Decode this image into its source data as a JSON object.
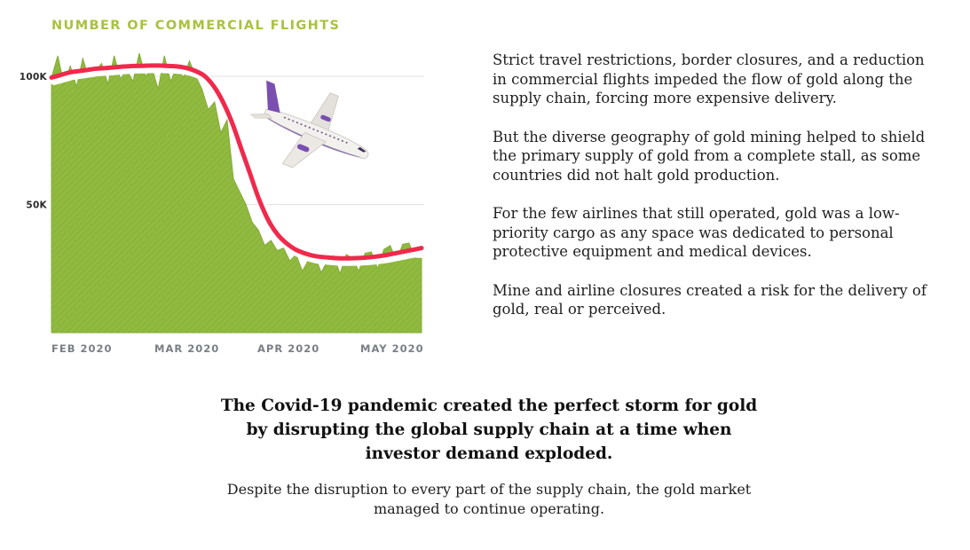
{
  "chart_data": {
    "type": "area",
    "title": "NUMBER OF COMMERCIAL FLIGHTS",
    "xlabel": "",
    "ylabel": "",
    "x_tick_labels": [
      "FEB 2020",
      "MAR 2020",
      "APR 2020",
      "MAY 2020"
    ],
    "y_tick_labels": [
      "100K",
      "50K"
    ],
    "y_ticks": [
      100000,
      50000
    ],
    "ylim": [
      0,
      105000
    ],
    "grid": true,
    "series": [
      {
        "values": [
          99500,
          108000,
          97000,
          104000,
          96000,
          107000,
          99000,
          102000,
          105000,
          97000,
          108000,
          99000,
          102500,
          98000,
          109000,
          100000,
          103500,
          95000,
          108000,
          98000,
          104000,
          99500,
          106000,
          100000,
          95000,
          87000,
          90000,
          78000,
          83000,
          60000,
          55000,
          50000,
          43000,
          40000,
          34000,
          36000,
          32000,
          33000,
          28000,
          30500,
          24000,
          28500,
          30000,
          23500,
          28000,
          30000,
          23000,
          30500,
          29000,
          24000,
          31000,
          31500,
          25000,
          32500,
          34000,
          28000,
          34500,
          35000,
          29000,
          29000
        ],
        "color": "#8cb63c"
      },
      {
        "values": [
          99500,
          100500,
          101500,
          102000,
          102500,
          103000,
          103200,
          103500,
          103800,
          104000,
          104100,
          104200,
          104200,
          104000,
          103800,
          103200,
          102000,
          100000,
          96000,
          90000,
          82000,
          72000,
          62000,
          52000,
          44000,
          38500,
          35000,
          32500,
          31000,
          30000,
          29500,
          29200,
          29000,
          29000,
          29100,
          29300,
          29700,
          30200,
          30900,
          31600,
          32300,
          33000
        ],
        "color": "#f0294c"
      }
    ]
  },
  "side_paragraphs": [
    "Strict travel restrictions, border closures, and a reduction in commercial flights impeded the flow of gold along the supply chain, forcing more expensive delivery.",
    "But the diverse geography of gold mining helped to shield the primary supply of gold from a complete stall, as some countries did not halt gold production.",
    "For the few airlines that still operated, gold was a low-priority cargo as any space was dedicated to personal protective equipment and medical devices.",
    "Mine and airline closures created a risk for the delivery of gold, real or perceived."
  ],
  "headline": "The Covid-19 pandemic created the perfect storm for gold by disrupting the global supply chain at a time when investor demand exploded.",
  "subtext": "Despite the disruption to every part of the supply chain, the gold market managed to continue operating.",
  "illustration": {
    "icon": "airplane-icon",
    "body_color": "#f3f1ee",
    "tail_color": "#7a4fb0"
  }
}
